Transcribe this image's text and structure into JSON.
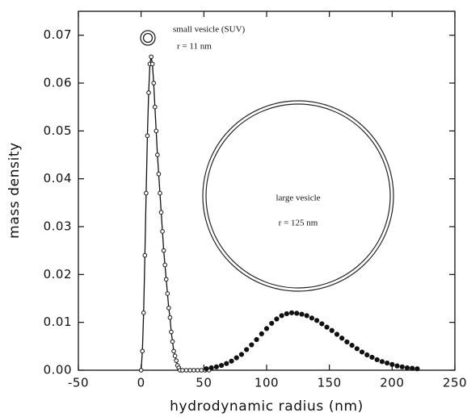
{
  "chart_data": {
    "type": "line",
    "x_label": "hydrodynamic radius (nm)",
    "y_label": "mass density",
    "xlim": [
      -50,
      250
    ],
    "ylim": [
      0,
      0.075
    ],
    "xticks": [
      -50,
      0,
      50,
      100,
      150,
      200,
      250
    ],
    "yticks": [
      {
        "value": 0,
        "label": "0.00"
      },
      {
        "value": 0.01,
        "label": "0.01"
      },
      {
        "value": 0.02,
        "label": "0.02"
      },
      {
        "value": 0.03,
        "label": "0.03"
      },
      {
        "value": 0.04,
        "label": "0.04"
      },
      {
        "value": 0.05,
        "label": "0.05"
      },
      {
        "value": 0.06,
        "label": "0.06"
      },
      {
        "value": 0.07,
        "label": "0.07"
      }
    ],
    "annotations": [
      "small vesicle (SUV)",
      "r = 11 nm",
      "large vesicle",
      "r = 125 nm"
    ],
    "series": [
      {
        "color": "#111111",
        "marker": "open",
        "line": true,
        "x": [
          0,
          1,
          2,
          3,
          4,
          5,
          6,
          7,
          8,
          9,
          10,
          11,
          12,
          13,
          14,
          15,
          16,
          17,
          18,
          19,
          20,
          21,
          22,
          23,
          24,
          25,
          26,
          27,
          28,
          29,
          30,
          31,
          33,
          36,
          39,
          42,
          45,
          48,
          51,
          54
        ],
        "values": [
          0,
          0.004,
          0.012,
          0.024,
          0.037,
          0.049,
          0.058,
          0.064,
          0.0655,
          0.064,
          0.06,
          0.055,
          0.05,
          0.045,
          0.041,
          0.037,
          0.033,
          0.029,
          0.025,
          0.022,
          0.019,
          0.016,
          0.013,
          0.011,
          0.008,
          0.006,
          0.004,
          0.003,
          0.002,
          0.001,
          0.0005,
          0,
          0,
          0,
          0,
          0,
          0,
          0,
          0,
          0
        ]
      },
      {
        "color": "#111111",
        "marker": "filled",
        "line": false,
        "x": [
          52,
          56,
          60,
          64,
          68,
          72,
          76,
          80,
          84,
          88,
          92,
          96,
          100,
          104,
          108,
          112,
          116,
          120,
          124,
          128,
          132,
          136,
          140,
          144,
          148,
          152,
          156,
          160,
          164,
          168,
          172,
          176,
          180,
          184,
          188,
          192,
          196,
          200,
          204,
          208,
          212,
          216,
          220
        ],
        "values": [
          0.0003,
          0.0005,
          0.0007,
          0.001,
          0.0014,
          0.0019,
          0.0026,
          0.0033,
          0.0043,
          0.0053,
          0.0064,
          0.0076,
          0.0087,
          0.0098,
          0.0107,
          0.0114,
          0.0118,
          0.012,
          0.0119,
          0.0117,
          0.0114,
          0.0109,
          0.0104,
          0.0097,
          0.009,
          0.0083,
          0.0075,
          0.0067,
          0.0059,
          0.0052,
          0.0045,
          0.0038,
          0.0032,
          0.0027,
          0.0022,
          0.0018,
          0.0015,
          0.0012,
          0.0009,
          0.0007,
          0.0005,
          0.0004,
          0.0003
        ]
      }
    ]
  }
}
